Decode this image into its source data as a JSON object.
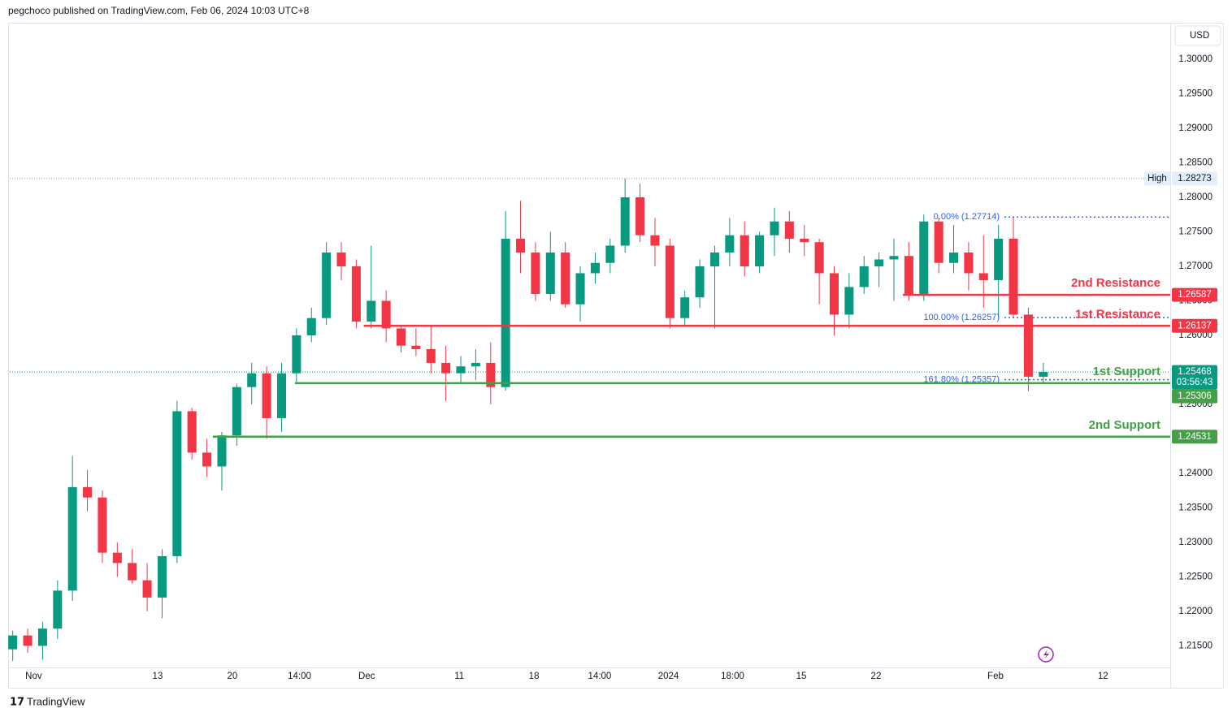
{
  "header": "pegchoco published on TradingView.com, Feb 06, 2024 10:03 UTC+8",
  "footer": "TradingView",
  "chart_data": {
    "type": "candlestick",
    "currency": "USD",
    "up_color": "#089981",
    "down_color": "#f23645",
    "x": [
      0,
      1,
      2,
      3,
      4,
      5,
      6,
      7,
      8,
      9,
      10,
      11,
      12,
      13,
      14,
      15,
      16,
      17,
      18,
      19,
      20,
      21,
      22,
      23,
      24,
      25,
      26,
      27,
      28,
      29,
      30,
      31,
      32,
      33,
      34,
      35,
      36,
      37,
      38,
      39,
      40,
      41,
      42,
      43,
      44,
      45,
      46,
      47,
      48,
      49,
      50,
      51,
      52,
      53,
      54,
      55,
      56,
      57,
      58,
      59,
      60,
      61,
      62,
      63,
      64,
      65,
      66,
      67,
      68,
      69
    ],
    "ohlc": [
      [
        1.2145,
        1.2172,
        1.2128,
        1.2165
      ],
      [
        1.2165,
        1.2175,
        1.214,
        1.215
      ],
      [
        1.215,
        1.2185,
        1.213,
        1.2175
      ],
      [
        1.2175,
        1.2245,
        1.216,
        1.223
      ],
      [
        1.223,
        1.2425,
        1.2215,
        1.238
      ],
      [
        1.238,
        1.2405,
        1.2345,
        1.2365
      ],
      [
        1.2365,
        1.2375,
        1.227,
        1.2285
      ],
      [
        1.2285,
        1.23,
        1.225,
        1.227
      ],
      [
        1.227,
        1.229,
        1.224,
        1.2245
      ],
      [
        1.2245,
        1.227,
        1.22,
        1.222
      ],
      [
        1.222,
        1.229,
        1.219,
        1.228
      ],
      [
        1.228,
        1.2505,
        1.227,
        1.249
      ],
      [
        1.249,
        1.2495,
        1.242,
        1.243
      ],
      [
        1.243,
        1.245,
        1.2395,
        1.241
      ],
      [
        1.241,
        1.246,
        1.2375,
        1.2455
      ],
      [
        1.2455,
        1.253,
        1.244,
        1.2525
      ],
      [
        1.2525,
        1.256,
        1.25,
        1.2545
      ],
      [
        1.2545,
        1.2555,
        1.245,
        1.248
      ],
      [
        1.248,
        1.256,
        1.246,
        1.2545
      ],
      [
        1.2545,
        1.261,
        1.253,
        1.26
      ],
      [
        1.26,
        1.264,
        1.259,
        1.2625
      ],
      [
        1.2625,
        1.2735,
        1.2615,
        1.272
      ],
      [
        1.272,
        1.2735,
        1.268,
        1.27
      ],
      [
        1.27,
        1.271,
        1.261,
        1.262
      ],
      [
        1.262,
        1.273,
        1.261,
        1.265
      ],
      [
        1.265,
        1.2665,
        1.259,
        1.261
      ],
      [
        1.261,
        1.2615,
        1.2575,
        1.2585
      ],
      [
        1.2585,
        1.261,
        1.257,
        1.258
      ],
      [
        1.258,
        1.2615,
        1.2545,
        1.256
      ],
      [
        1.256,
        1.2585,
        1.2505,
        1.2545
      ],
      [
        1.2545,
        1.257,
        1.253,
        1.2555
      ],
      [
        1.2555,
        1.258,
        1.2535,
        1.256
      ],
      [
        1.256,
        1.259,
        1.25,
        1.2525
      ],
      [
        1.2525,
        1.278,
        1.252,
        1.274
      ],
      [
        1.274,
        1.2795,
        1.269,
        1.272
      ],
      [
        1.272,
        1.2735,
        1.265,
        1.266
      ],
      [
        1.266,
        1.275,
        1.265,
        1.272
      ],
      [
        1.272,
        1.2735,
        1.264,
        1.2645
      ],
      [
        1.2645,
        1.27,
        1.262,
        1.269
      ],
      [
        1.269,
        1.272,
        1.2675,
        1.2705
      ],
      [
        1.2705,
        1.274,
        1.269,
        1.273
      ],
      [
        1.273,
        1.2827,
        1.272,
        1.28
      ],
      [
        1.28,
        1.282,
        1.2735,
        1.2745
      ],
      [
        1.2745,
        1.277,
        1.27,
        1.273
      ],
      [
        1.273,
        1.274,
        1.261,
        1.2625
      ],
      [
        1.2625,
        1.2665,
        1.2612,
        1.2655
      ],
      [
        1.2655,
        1.271,
        1.264,
        1.27
      ],
      [
        1.27,
        1.273,
        1.261,
        1.272
      ],
      [
        1.272,
        1.277,
        1.27,
        1.2745
      ],
      [
        1.2745,
        1.2765,
        1.2685,
        1.27
      ],
      [
        1.27,
        1.275,
        1.269,
        1.2745
      ],
      [
        1.2745,
        1.2785,
        1.2715,
        1.2765
      ],
      [
        1.2765,
        1.278,
        1.272,
        1.274
      ],
      [
        1.274,
        1.276,
        1.2715,
        1.2735
      ],
      [
        1.2735,
        1.274,
        1.2645,
        1.269
      ],
      [
        1.269,
        1.27,
        1.26,
        1.263
      ],
      [
        1.263,
        1.269,
        1.261,
        1.267
      ],
      [
        1.267,
        1.2715,
        1.266,
        1.27
      ],
      [
        1.27,
        1.272,
        1.267,
        1.271
      ],
      [
        1.271,
        1.274,
        1.265,
        1.2715
      ],
      [
        1.2715,
        1.2735,
        1.265,
        1.266
      ],
      [
        1.266,
        1.2775,
        1.265,
        1.2765
      ],
      [
        1.2765,
        1.277,
        1.269,
        1.2705
      ],
      [
        1.2705,
        1.276,
        1.269,
        1.272
      ],
      [
        1.272,
        1.2735,
        1.2665,
        1.269
      ],
      [
        1.269,
        1.2745,
        1.264,
        1.268
      ],
      [
        1.268,
        1.276,
        1.2625,
        1.274
      ],
      [
        1.274,
        1.2771,
        1.2625,
        1.263
      ],
      [
        1.263,
        1.264,
        1.2519,
        1.254
      ],
      [
        1.254,
        1.256,
        1.253,
        1.2547
      ]
    ],
    "xlim": [
      -0.2,
      77.5
    ],
    "xticks": [
      {
        "value": 1.4,
        "label": "Nov"
      },
      {
        "value": 9.7,
        "label": "13"
      },
      {
        "value": 14.7,
        "label": "20"
      },
      {
        "value": 19.2,
        "label": "14:00"
      },
      {
        "value": 23.7,
        "label": "Dec"
      },
      {
        "value": 29.9,
        "label": "11"
      },
      {
        "value": 34.9,
        "label": "18"
      },
      {
        "value": 39.3,
        "label": "14:00"
      },
      {
        "value": 43.9,
        "label": "2024"
      },
      {
        "value": 48.2,
        "label": "18:00"
      },
      {
        "value": 52.8,
        "label": "15"
      },
      {
        "value": 57.8,
        "label": "22"
      },
      {
        "value": 65.8,
        "label": "Feb"
      },
      {
        "value": 73.0,
        "label": "12"
      }
    ],
    "ylim": [
      1.2121,
      1.3053
    ],
    "yticks": [
      {
        "value": 1.215,
        "label": "1.21500"
      },
      {
        "value": 1.22,
        "label": "1.22000"
      },
      {
        "value": 1.225,
        "label": "1.22500"
      },
      {
        "value": 1.23,
        "label": "1.23000"
      },
      {
        "value": 1.235,
        "label": "1.23500"
      },
      {
        "value": 1.24,
        "label": "1.24000"
      },
      {
        "value": 1.245,
        "label": "1.24500"
      },
      {
        "value": 1.25,
        "label": "1.25000"
      },
      {
        "value": 1.255,
        "label": "1.25500"
      },
      {
        "value": 1.26,
        "label": "1.26000"
      },
      {
        "value": 1.265,
        "label": "1.26500"
      },
      {
        "value": 1.27,
        "label": "1.27000"
      },
      {
        "value": 1.275,
        "label": "1.27500"
      },
      {
        "value": 1.28,
        "label": "1.28000"
      },
      {
        "value": 1.285,
        "label": "1.28500"
      },
      {
        "value": 1.29,
        "label": "1.29000"
      },
      {
        "value": 1.295,
        "label": "1.29500"
      },
      {
        "value": 1.3,
        "label": "1.30000"
      }
    ],
    "levels": [
      {
        "name": "2nd Resistance",
        "value": 1.26587,
        "start": 59.6,
        "color": "#f23645"
      },
      {
        "name": "1st Resistance",
        "value": 1.26137,
        "start": 23.5,
        "color": "#f23645"
      },
      {
        "name": "1st Support",
        "value": 1.25306,
        "start": 18.9,
        "color": "#43a047"
      },
      {
        "name": "2nd Support",
        "value": 1.24531,
        "start": 13.4,
        "color": "#43a047"
      }
    ],
    "fib_levels": [
      {
        "label": "0.00% (1.27714)",
        "value": 1.27714,
        "start": 66.4
      },
      {
        "label": "100.00% (1.26257)",
        "value": 1.26257,
        "start": 66.4
      },
      {
        "label": "161.80% (1.25357)",
        "value": 1.25357,
        "start": 66.4
      }
    ],
    "fib_color": "#2962ff",
    "high": {
      "name": "High",
      "value": 1.28273
    },
    "last": {
      "value": 1.25468,
      "countdown": "03:56:43"
    }
  }
}
